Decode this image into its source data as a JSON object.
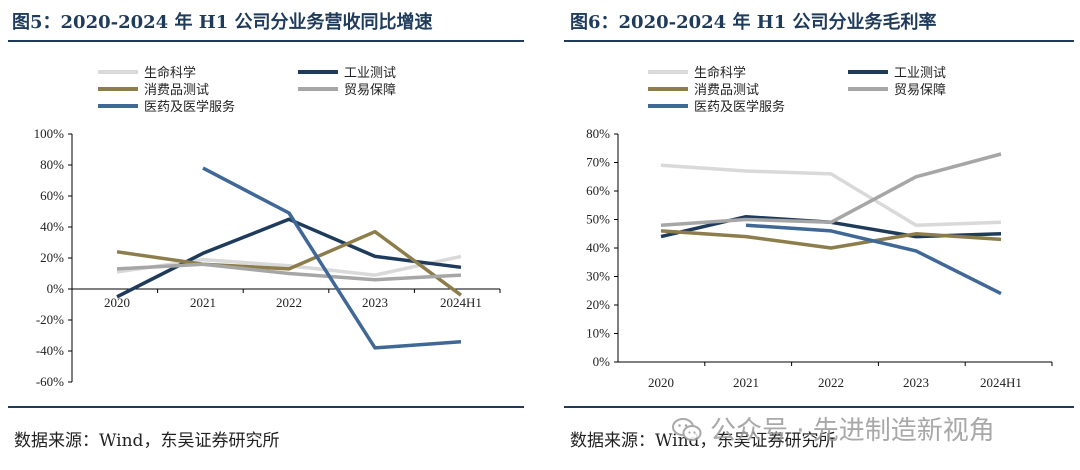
{
  "left": {
    "title": "图5：2020-2024 年 H1 公司分业务营收同比增速",
    "source": "数据来源：Wind，东吴证券研究所"
  },
  "right": {
    "title": "图6：2020-2024 年 H1 公司分业务毛利率",
    "source": "数据来源：Wind，东吴证券研究所"
  },
  "watermark": {
    "text": "公众号 · 先进制造新视角",
    "icon": "wechat-icon"
  },
  "colors": {
    "生命科学": "#d9d9d9",
    "工业测试": "#1f3b5c",
    "消费品测试": "#8c7d4b",
    "贸易保障": "#a6a6a6",
    "医药及医学服务": "#3f6896"
  },
  "chart_data": [
    {
      "type": "line",
      "title": "2020-2024 年 H1 公司分业务营收同比增速",
      "categories": [
        "2020",
        "2021",
        "2022",
        "2023",
        "2024H1"
      ],
      "ylim": [
        -60,
        100
      ],
      "yticks": [
        -60,
        -40,
        -20,
        0,
        20,
        40,
        60,
        80,
        100
      ],
      "ytick_labels": [
        "-60%",
        "-40%",
        "-20%",
        "0%",
        "20%",
        "40%",
        "60%",
        "80%",
        "100%"
      ],
      "grid": false,
      "legend_position": "top-left",
      "series": [
        {
          "name": "生命科学",
          "values": [
            11,
            19,
            15,
            9,
            21
          ]
        },
        {
          "name": "工业测试",
          "values": [
            -5,
            23,
            45,
            21,
            14
          ]
        },
        {
          "name": "消费品测试",
          "values": [
            24,
            16,
            13,
            37,
            -4
          ]
        },
        {
          "name": "贸易保障",
          "values": [
            13,
            16,
            10,
            6,
            9
          ]
        },
        {
          "name": "医药及医学服务",
          "values": [
            null,
            78,
            49,
            -38,
            -34
          ]
        }
      ]
    },
    {
      "type": "line",
      "title": "2020-2024 年 H1 公司分业务毛利率",
      "categories": [
        "2020",
        "2021",
        "2022",
        "2023",
        "2024H1"
      ],
      "ylim": [
        0,
        80
      ],
      "yticks": [
        0,
        10,
        20,
        30,
        40,
        50,
        60,
        70,
        80
      ],
      "ytick_labels": [
        "0%",
        "10%",
        "20%",
        "30%",
        "40%",
        "50%",
        "60%",
        "70%",
        "80%"
      ],
      "grid": false,
      "legend_position": "top-left",
      "series": [
        {
          "name": "生命科学",
          "values": [
            69,
            67,
            66,
            48,
            49
          ]
        },
        {
          "name": "工业测试",
          "values": [
            44,
            51,
            49,
            44,
            45
          ]
        },
        {
          "name": "消费品测试",
          "values": [
            46,
            44,
            40,
            45,
            43
          ]
        },
        {
          "name": "贸易保障",
          "values": [
            48,
            50,
            49,
            65,
            73
          ]
        },
        {
          "name": "医药及医学服务",
          "values": [
            null,
            48,
            46,
            39,
            24
          ]
        }
      ]
    }
  ]
}
